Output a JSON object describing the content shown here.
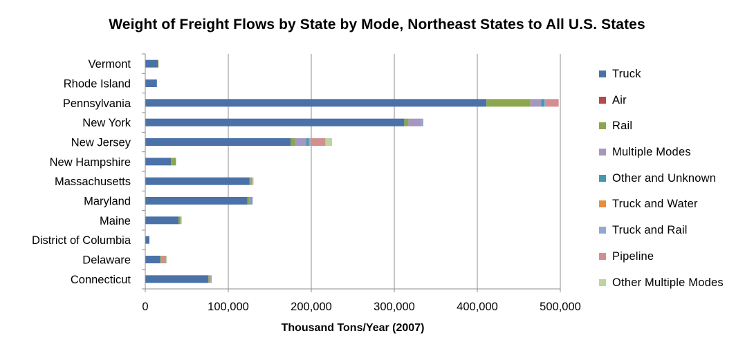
{
  "chart_data": {
    "type": "bar",
    "orientation": "horizontal",
    "stacked": true,
    "title": "Weight of Freight Flows by State by Mode, Northeast States to All U.S. States",
    "xlabel": "Thousand Tons/Year (2007)",
    "ylabel": "",
    "xlim": [
      0,
      500000
    ],
    "x_ticks": [
      0,
      100000,
      200000,
      300000,
      400000,
      500000
    ],
    "x_tick_labels": [
      "0",
      "100,000",
      "200,000",
      "300,000",
      "400,000",
      "500,000"
    ],
    "grid": "vertical",
    "legend_position": "right",
    "categories": [
      "Vermont",
      "Rhode Island",
      "Pennsylvania",
      "New York",
      "New Jersey",
      "New Hampshire",
      "Massachusetts",
      "Maryland",
      "Maine",
      "District of Columbia",
      "Delaware",
      "Connecticut"
    ],
    "series": [
      {
        "name": "Truck",
        "color": "#4a72a8",
        "values": [
          15000,
          14000,
          411000,
          312000,
          175000,
          31000,
          125000,
          123000,
          40000,
          5000,
          18000,
          76000
        ]
      },
      {
        "name": "Air",
        "color": "#b94848",
        "values": [
          0,
          0,
          0,
          0,
          0,
          0,
          500,
          0,
          0,
          0,
          0,
          0
        ]
      },
      {
        "name": "Rail",
        "color": "#8ca64e",
        "values": [
          1000,
          0,
          53000,
          5000,
          5000,
          5000,
          1500,
          2000,
          2500,
          0,
          1000,
          1000
        ]
      },
      {
        "name": "Multiple Modes",
        "color": "#a596c2",
        "values": [
          0,
          0,
          13000,
          15000,
          14000,
          0,
          1000,
          2000,
          0,
          0,
          0,
          2000
        ]
      },
      {
        "name": "Other and Unknown",
        "color": "#4498af",
        "values": [
          0,
          0,
          4000,
          0,
          3000,
          1000,
          500,
          1000,
          0,
          0,
          0,
          0
        ]
      },
      {
        "name": "Truck and Water",
        "color": "#e48e3e",
        "values": [
          0,
          0,
          0,
          0,
          0,
          0,
          500,
          0,
          0,
          0,
          0,
          0
        ]
      },
      {
        "name": "Truck and Rail",
        "color": "#93a8d0",
        "values": [
          0,
          0,
          1000,
          3000,
          2000,
          0,
          500,
          1500,
          0,
          0,
          0,
          0
        ]
      },
      {
        "name": "Pipeline",
        "color": "#d28f8f",
        "values": [
          0,
          0,
          16000,
          0,
          18000,
          0,
          0,
          0,
          0,
          0,
          6000,
          1000
        ]
      },
      {
        "name": "Other Multiple Modes",
        "color": "#bcd4a0",
        "values": [
          0,
          0,
          0,
          0,
          8000,
          0,
          1000,
          0,
          1500,
          0,
          1000,
          0
        ]
      }
    ]
  }
}
